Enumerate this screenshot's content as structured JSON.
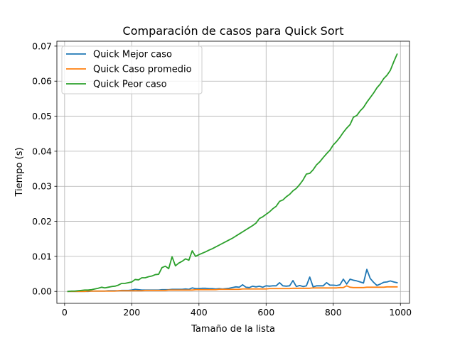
{
  "chart_data": {
    "type": "line",
    "title": "Comparación de casos para Quick Sort",
    "xlabel": "Tamaño de la lista",
    "ylabel": "Tiempo (s)",
    "xlim": [
      -23,
      1027
    ],
    "ylim": [
      -0.0034,
      0.0714
    ],
    "xticks": [
      0,
      200,
      400,
      600,
      800,
      1000
    ],
    "xtick_labels": [
      "0",
      "200",
      "400",
      "600",
      "800",
      "1000"
    ],
    "yticks": [
      0.0,
      0.01,
      0.02,
      0.03,
      0.04,
      0.05,
      0.06,
      0.07
    ],
    "ytick_labels": [
      "0.00",
      "0.01",
      "0.02",
      "0.03",
      "0.04",
      "0.05",
      "0.06",
      "0.07"
    ],
    "grid": true,
    "legend_position": "top-left",
    "x": [
      10,
      20,
      30,
      40,
      50,
      60,
      70,
      80,
      90,
      100,
      110,
      120,
      130,
      140,
      150,
      160,
      170,
      180,
      190,
      200,
      210,
      220,
      230,
      240,
      250,
      260,
      270,
      280,
      290,
      300,
      310,
      320,
      330,
      340,
      350,
      360,
      370,
      380,
      390,
      400,
      410,
      420,
      430,
      440,
      450,
      460,
      470,
      480,
      490,
      500,
      510,
      520,
      530,
      540,
      550,
      560,
      570,
      580,
      590,
      600,
      610,
      620,
      630,
      640,
      650,
      660,
      670,
      680,
      690,
      700,
      710,
      720,
      730,
      740,
      750,
      760,
      770,
      780,
      790,
      800,
      810,
      820,
      830,
      840,
      850,
      860,
      870,
      880,
      890,
      900,
      910,
      920,
      930,
      940,
      950,
      960,
      970,
      980,
      990
    ],
    "series": [
      {
        "name": "Quick Mejor caso",
        "color": "#1f77b4",
        "values": [
          0.0,
          0.0,
          0.0,
          0.0,
          0.0,
          0.0,
          0.0,
          0.0001,
          0.0001,
          0.0001,
          0.0001,
          0.0001,
          0.0002,
          0.0002,
          0.0002,
          0.0002,
          0.0003,
          0.0003,
          0.0003,
          0.0004,
          0.0006,
          0.0005,
          0.0004,
          0.0004,
          0.0004,
          0.0004,
          0.0004,
          0.0004,
          0.0005,
          0.0005,
          0.0005,
          0.0006,
          0.0006,
          0.0006,
          0.0006,
          0.0007,
          0.0006,
          0.001,
          0.0008,
          0.0008,
          0.0009,
          0.0009,
          0.0008,
          0.0008,
          0.0007,
          0.0008,
          0.0007,
          0.0008,
          0.0009,
          0.0011,
          0.0013,
          0.0012,
          0.0019,
          0.0012,
          0.0011,
          0.0015,
          0.0013,
          0.0015,
          0.0012,
          0.0016,
          0.0015,
          0.0016,
          0.0016,
          0.0025,
          0.0016,
          0.0015,
          0.0016,
          0.0031,
          0.0014,
          0.0017,
          0.0014,
          0.0016,
          0.0041,
          0.0013,
          0.0016,
          0.0016,
          0.0016,
          0.0025,
          0.0018,
          0.0018,
          0.0017,
          0.0019,
          0.0035,
          0.0021,
          0.0035,
          0.0032,
          0.003,
          0.0027,
          0.0024,
          0.0063,
          0.0037,
          0.0026,
          0.0017,
          0.0021,
          0.0026,
          0.0027,
          0.003,
          0.0027,
          0.0025
        ]
      },
      {
        "name": "Quick Caso promedio",
        "color": "#ff7f0e",
        "values": [
          0.0,
          0.0,
          0.0,
          0.0,
          0.0,
          0.0,
          0.0001,
          0.0001,
          0.0001,
          0.0001,
          0.0001,
          0.0001,
          0.0001,
          0.0001,
          0.0001,
          0.0002,
          0.0002,
          0.0002,
          0.0002,
          0.0002,
          0.0002,
          0.0002,
          0.0002,
          0.0003,
          0.0003,
          0.0003,
          0.0003,
          0.0003,
          0.0003,
          0.0003,
          0.0004,
          0.0004,
          0.0004,
          0.0004,
          0.0004,
          0.0004,
          0.0004,
          0.0004,
          0.0005,
          0.0005,
          0.0005,
          0.0005,
          0.0005,
          0.0005,
          0.0005,
          0.0006,
          0.0006,
          0.0006,
          0.0006,
          0.0006,
          0.0006,
          0.0006,
          0.0007,
          0.0007,
          0.0007,
          0.0007,
          0.0007,
          0.0007,
          0.0007,
          0.0007,
          0.0008,
          0.0008,
          0.0008,
          0.0008,
          0.0008,
          0.0008,
          0.0008,
          0.0009,
          0.0009,
          0.0009,
          0.0009,
          0.0009,
          0.0009,
          0.001,
          0.001,
          0.001,
          0.001,
          0.001,
          0.001,
          0.001,
          0.001,
          0.0011,
          0.0011,
          0.0016,
          0.0012,
          0.0011,
          0.0011,
          0.0011,
          0.0011,
          0.0012,
          0.0012,
          0.0012,
          0.0012,
          0.0012,
          0.0012,
          0.0013,
          0.0013,
          0.0013,
          0.0013
        ]
      },
      {
        "name": "Quick Peor caso",
        "color": "#2ca02c",
        "values": [
          0.0,
          0.0001,
          0.0001,
          0.0002,
          0.0003,
          0.0004,
          0.0004,
          0.0005,
          0.0007,
          0.0009,
          0.0012,
          0.001,
          0.0012,
          0.0014,
          0.0015,
          0.0018,
          0.0023,
          0.0023,
          0.0025,
          0.0027,
          0.0034,
          0.0033,
          0.0039,
          0.0039,
          0.0042,
          0.0044,
          0.0048,
          0.0049,
          0.0068,
          0.0072,
          0.0065,
          0.0099,
          0.0073,
          0.0081,
          0.0086,
          0.0093,
          0.0089,
          0.0116,
          0.01,
          0.0105,
          0.0109,
          0.0113,
          0.0118,
          0.0122,
          0.0127,
          0.0132,
          0.0137,
          0.0142,
          0.0147,
          0.0152,
          0.0158,
          0.0164,
          0.017,
          0.0176,
          0.0182,
          0.0188,
          0.0195,
          0.0208,
          0.0213,
          0.022,
          0.0227,
          0.0236,
          0.0243,
          0.0257,
          0.0261,
          0.027,
          0.0277,
          0.0287,
          0.0294,
          0.0305,
          0.0318,
          0.0335,
          0.0337,
          0.0347,
          0.0361,
          0.037,
          0.0382,
          0.0393,
          0.0403,
          0.0418,
          0.0428,
          0.044,
          0.0454,
          0.0466,
          0.0476,
          0.0497,
          0.0502,
          0.0515,
          0.0525,
          0.054,
          0.0553,
          0.0566,
          0.0581,
          0.0592,
          0.0607,
          0.0617,
          0.0631,
          0.0655,
          0.0677
        ]
      }
    ]
  }
}
